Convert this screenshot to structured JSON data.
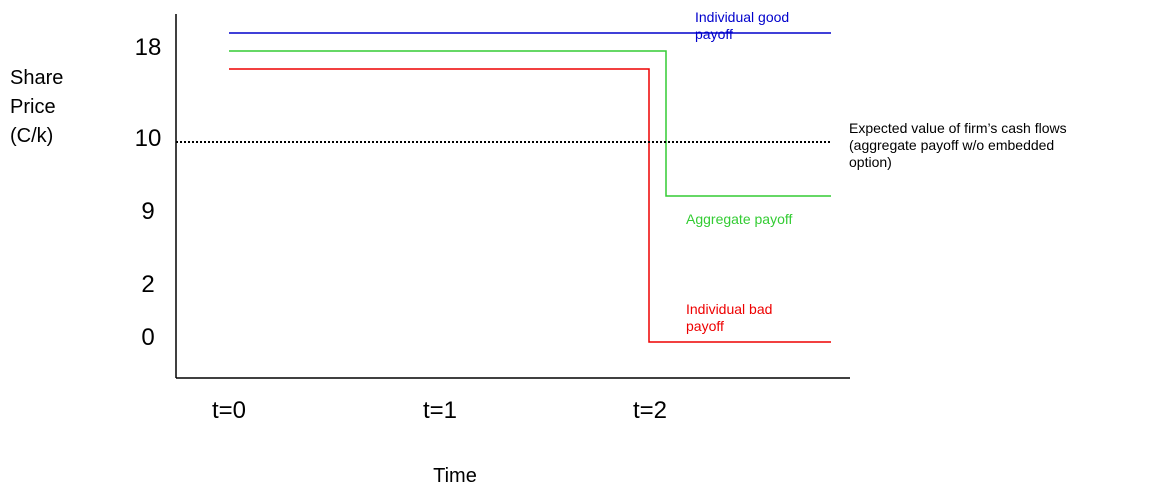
{
  "chart_data": {
    "type": "line",
    "title": "",
    "ylabel": [
      "Share",
      "Price",
      "(C/k)"
    ],
    "xlabel": "Time",
    "categories": [
      "t=0",
      "t=1",
      "t=2"
    ],
    "y_ticks": [
      "18",
      "10",
      "9",
      "2",
      "0"
    ],
    "series": [
      {
        "name": "Individual good payoff",
        "label_lines": [
          "Individual good",
          "payoff"
        ],
        "color": "#0000cc",
        "style": "solid",
        "points": [
          [
            "t=0",
            "18"
          ],
          [
            "end",
            "18"
          ]
        ]
      },
      {
        "name": "Aggregate payoff",
        "label_lines": [
          "Aggregate payoff"
        ],
        "color": "#33cc33",
        "style": "solid",
        "points": [
          [
            "t=0",
            "18"
          ],
          [
            "t=2",
            "18"
          ],
          [
            "t=2",
            "9"
          ],
          [
            "end",
            "9"
          ]
        ]
      },
      {
        "name": "Individual bad payoff",
        "label_lines": [
          "Individual bad",
          "payoff"
        ],
        "color": "#ee0000",
        "style": "solid",
        "points": [
          [
            "t=0",
            "18"
          ],
          [
            "t=2",
            "18"
          ],
          [
            "t=2",
            "0"
          ],
          [
            "end",
            "0"
          ]
        ]
      },
      {
        "name": "Expected value of firm’s cash flows (aggregate payoff w/o embedded option)",
        "label_lines": [
          "Expected value of firm’s cash flows",
          "(aggregate payoff w/o embedded",
          "option)"
        ],
        "color": "#000000",
        "style": "dotted",
        "points": [
          [
            "start",
            "10"
          ],
          [
            "end",
            "10"
          ]
        ]
      }
    ],
    "grid": false,
    "legend": "none"
  }
}
